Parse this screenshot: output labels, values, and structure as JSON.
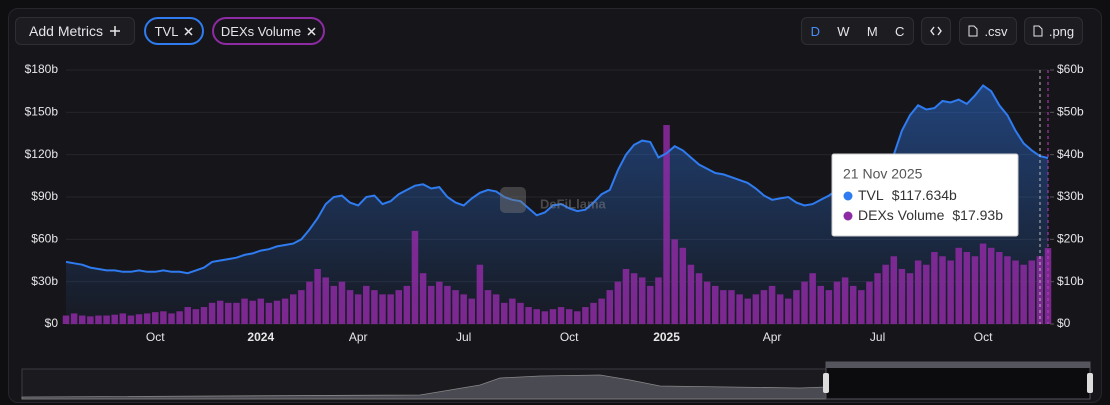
{
  "ui": {
    "add_metrics": "Add Metrics",
    "periods": [
      "D",
      "W",
      "M",
      "C"
    ],
    "csv": ".csv",
    "png": ".png",
    "watermark": "DeFiLlama"
  },
  "chart_data": {
    "type": "bar-line",
    "categories": [
      null,
      null,
      null,
      null,
      null,
      null,
      null,
      null,
      null,
      null,
      null,
      "Oct",
      null,
      null,
      null,
      null,
      null,
      null,
      null,
      null,
      null,
      null,
      null,
      null,
      "2024",
      null,
      null,
      null,
      null,
      null,
      null,
      null,
      null,
      null,
      null,
      null,
      "Apr",
      null,
      null,
      null,
      null,
      null,
      null,
      null,
      null,
      null,
      null,
      null,
      null,
      "Jul",
      null,
      null,
      null,
      null,
      null,
      null,
      null,
      null,
      null,
      null,
      null,
      null,
      "Oct",
      null,
      null,
      null,
      null,
      null,
      null,
      null,
      null,
      null,
      null,
      null,
      "2025",
      null,
      null,
      null,
      null,
      null,
      null,
      null,
      null,
      null,
      null,
      null,
      null,
      "Apr",
      null,
      null,
      null,
      null,
      null,
      null,
      null,
      null,
      null,
      null,
      null,
      null,
      "Jul",
      null,
      null,
      null,
      null,
      null,
      null,
      null,
      null,
      null,
      null,
      null,
      null,
      "Oct",
      null,
      null,
      null,
      null,
      null,
      null,
      null,
      null
    ],
    "series": [
      {
        "name": "TVL",
        "color": "#2f7bf0",
        "values": [
          44,
          43,
          42,
          40,
          39,
          38,
          38,
          37,
          37,
          38,
          37,
          37,
          38,
          37,
          37,
          36,
          38,
          40,
          44,
          45,
          46,
          47,
          49,
          50,
          52,
          53,
          55,
          56,
          57,
          60,
          67,
          75,
          85,
          90,
          91,
          86,
          84,
          90,
          91,
          85,
          87,
          92,
          95,
          98,
          99,
          96,
          97,
          90,
          86,
          84,
          89,
          93,
          95,
          94,
          90,
          88,
          87,
          82,
          77,
          79,
          84,
          85,
          82,
          80,
          81,
          86,
          92,
          95,
          109,
          120,
          127,
          130,
          129,
          118,
          121,
          126,
          123,
          118,
          113,
          110,
          107,
          106,
          104,
          102,
          100,
          96,
          91,
          88,
          89,
          90,
          86,
          84,
          85,
          88,
          91,
          95,
          100,
          96,
          92,
          94,
          98,
          102,
          120,
          137,
          148,
          155,
          152,
          153,
          158,
          157,
          159,
          156,
          162,
          169,
          165,
          155,
          148,
          137,
          128,
          123,
          119,
          117.634
        ]
      },
      {
        "name": "DEXs Volume",
        "color": "#8e2aa3",
        "axis": "y2",
        "values": [
          2,
          2.5,
          2,
          1.8,
          2,
          2,
          2.2,
          2.5,
          2,
          2.3,
          2.5,
          2.8,
          3,
          2.5,
          3,
          4,
          3.5,
          4,
          5,
          5.5,
          5,
          5,
          6,
          5.5,
          6,
          5,
          5.5,
          6,
          7,
          8,
          10,
          13,
          11,
          9,
          10,
          8,
          7,
          9,
          8,
          7,
          7,
          8,
          9,
          22,
          12,
          9,
          10,
          9,
          8,
          7,
          6,
          14,
          8,
          7,
          5,
          6,
          5,
          4,
          3.5,
          3,
          3.5,
          4,
          3.5,
          3,
          4,
          5,
          6,
          8,
          10,
          13,
          12,
          11,
          9,
          11,
          47,
          20,
          18,
          14,
          12,
          10,
          9,
          8,
          8,
          7,
          6,
          7,
          8,
          9,
          7,
          6,
          8,
          10,
          12,
          9,
          8,
          10,
          11,
          9,
          8,
          10,
          12,
          14,
          16,
          13,
          12,
          15,
          14,
          17,
          16,
          15,
          18,
          17,
          16,
          19,
          18,
          17,
          16,
          15,
          14,
          15,
          16,
          17.93
        ]
      }
    ],
    "ylim": [
      0,
      180
    ],
    "yticks": [
      {
        "value": 0,
        "label": "$0"
      },
      {
        "value": 30,
        "label": "$30b"
      },
      {
        "value": 60,
        "label": "$60b"
      },
      {
        "value": 90,
        "label": "$90b"
      },
      {
        "value": 120,
        "label": "$120b"
      },
      {
        "value": 150,
        "label": "$150b"
      },
      {
        "value": 180,
        "label": "$180b"
      }
    ],
    "y2lim": [
      0,
      60
    ],
    "y2ticks": [
      {
        "value": 0,
        "label": "$0"
      },
      {
        "value": 10,
        "label": "$10b"
      },
      {
        "value": 20,
        "label": "$20b"
      },
      {
        "value": 30,
        "label": "$30b"
      },
      {
        "value": 40,
        "label": "$40b"
      },
      {
        "value": 50,
        "label": "$50b"
      },
      {
        "value": 60,
        "label": "$60b"
      }
    ],
    "grid": true,
    "tooltip": {
      "title": "21 Nov 2025",
      "value_labels": [
        "$117.634b",
        "$17.93b"
      ]
    }
  }
}
